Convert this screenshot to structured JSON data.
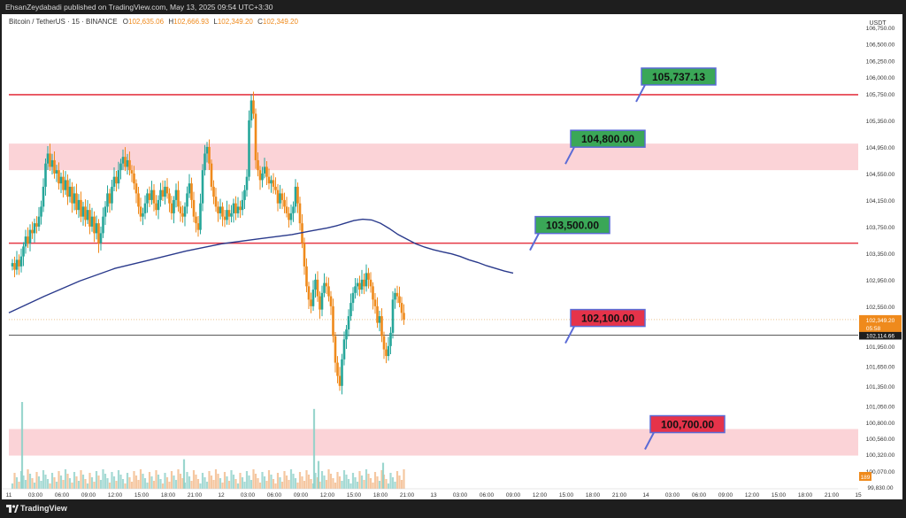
{
  "header": {
    "published_line": "EhsanZeydabadi published on TradingView.com, May 13, 2025 09:54 UTC+3:30"
  },
  "symbol_bar": {
    "title": "Bitcoin / TetherUS · 15 · BINANCE",
    "o_label": "O",
    "o_value": "102,635.06",
    "h_label": "H",
    "h_value": "102,666.93",
    "l_label": "L",
    "l_value": "102,349.20",
    "c_label": "C",
    "c_value": "102,349.20"
  },
  "footer": {
    "brand": "TradingView"
  },
  "colors": {
    "up": "#26a69a",
    "down": "#ef8a1c",
    "ma": "#2a3a8c",
    "resistance_line": "#e53946",
    "zone_fill": "#fbd3d7",
    "green_box": "#3aa757",
    "red_box": "#e5334a",
    "box_border": "#5b6bd6"
  },
  "chart_data": {
    "type": "candlestick",
    "symbol": "Bitcoin / TetherUS",
    "interval": "15",
    "exchange": "BINANCE",
    "y_axis_unit": "USDT",
    "ylim": [
      99800,
      106950
    ],
    "y_ticks": [
      "106,750.00",
      "106,500.00",
      "106,250.00",
      "106,000.00",
      "105,750.00",
      "105,350.00",
      "104,950.00",
      "104,550.00",
      "104,150.00",
      "103,750.00",
      "103,350.00",
      "102,950.00",
      "102,550.00",
      "101,950.00",
      "101,650.00",
      "101,350.00",
      "101,050.00",
      "100,800.00",
      "100,560.00",
      "100,320.00",
      "100,070.00",
      "99,830.00"
    ],
    "x_ticks": [
      "11",
      "03:00",
      "06:00",
      "09:00",
      "12:00",
      "15:00",
      "18:00",
      "21:00",
      "12",
      "03:00",
      "06:00",
      "09:00",
      "12:00",
      "15:00",
      "18:00",
      "21:00",
      "13",
      "03:00",
      "06:00",
      "09:00",
      "12:00",
      "15:00",
      "18:00",
      "21:00",
      "14",
      "03:00",
      "06:00",
      "09:00",
      "12:00",
      "15:00",
      "18:00",
      "21:00",
      "15"
    ],
    "x_range_hours": [
      0,
      96
    ],
    "ohlc_series": {
      "x_start_hours": 0.4,
      "x_step_hours": 0.25,
      "closes": [
        103200,
        103100,
        103250,
        103150,
        103300,
        103450,
        103600,
        103500,
        103700,
        103650,
        103800,
        103750,
        103900,
        104050,
        104350,
        104700,
        104850,
        104650,
        104750,
        104550,
        104600,
        104400,
        104500,
        104300,
        104450,
        104200,
        104350,
        104100,
        104250,
        104000,
        104150,
        103900,
        104050,
        103850,
        104000,
        103750,
        103900,
        103650,
        103800,
        103500,
        103650,
        103900,
        104050,
        104250,
        104100,
        104350,
        104500,
        104400,
        104600,
        104700,
        104800,
        104650,
        104750,
        104600,
        104550,
        104400,
        104250,
        104050,
        103900,
        103950,
        104100,
        104250,
        104150,
        104300,
        104100,
        104000,
        104150,
        104300,
        104200,
        104350,
        104250,
        104100,
        103950,
        104150,
        104300,
        104050,
        103950,
        103900,
        104050,
        104250,
        104400,
        104150,
        103900,
        103800,
        103700,
        104100,
        104600,
        104850,
        104950,
        104700,
        104350,
        104200,
        104050,
        103950,
        104050,
        103900,
        103850,
        104000,
        103900,
        103950,
        104100,
        103950,
        104050,
        104000,
        104150,
        104300,
        104500,
        105350,
        105650,
        105450,
        104750,
        104600,
        104450,
        104550,
        104650,
        104500,
        104400,
        104450,
        104350,
        104300,
        104100,
        104250,
        104150,
        104050,
        103950,
        103850,
        103950,
        104050,
        104350,
        104100,
        103800,
        103500,
        103150,
        102850,
        102650,
        102550,
        102800,
        102950,
        102700,
        102500,
        102750,
        102900,
        102850,
        102700,
        102550,
        102100,
        101700,
        101500,
        101350,
        101750,
        102050,
        102200,
        102400,
        102600,
        102750,
        102850,
        102900,
        102800,
        102950,
        102850,
        103050,
        102950,
        102850,
        102650,
        102550,
        102300,
        102400,
        102100,
        101900,
        101800,
        101950,
        102150,
        102650,
        102750,
        102700,
        102600,
        102450,
        102350
      ]
    },
    "series": [
      {
        "name": "MA",
        "x": [
          0,
          4,
          8,
          12,
          16,
          20,
          24,
          28,
          32,
          34,
          36,
          37,
          38,
          39,
          40,
          41,
          42,
          43,
          44,
          45,
          46,
          47,
          48,
          49,
          50,
          51,
          52,
          53,
          54,
          55,
          56,
          57
        ],
        "values": [
          102450,
          102700,
          102930,
          103120,
          103250,
          103380,
          103490,
          103560,
          103630,
          103680,
          103730,
          103760,
          103800,
          103840,
          103860,
          103850,
          103800,
          103720,
          103630,
          103560,
          103490,
          103440,
          103400,
          103370,
          103340,
          103300,
          103250,
          103210,
          103160,
          103120,
          103080,
          103050
        ]
      }
    ],
    "volume_bars": {
      "max_value": 100,
      "spikes": [
        {
          "x_hours": 1.5,
          "value": 100
        },
        {
          "x_hours": 34.5,
          "value": 92
        },
        {
          "x_hours": 35.0,
          "value": 32
        },
        {
          "x_hours": 19.8,
          "value": 34
        },
        {
          "x_hours": 42.3,
          "value": 30
        }
      ]
    },
    "horizontal_levels": [
      {
        "price": 105737.13,
        "kind": "line",
        "box_label": "105,737.13",
        "box_color": "green",
        "box_x_hours": 71.5
      },
      {
        "price_low": 104600,
        "price_high": 105000,
        "kind": "zone",
        "box_label": "104,800.00",
        "box_color": "green",
        "box_x_hours": 63.5
      },
      {
        "price": 103500,
        "kind": "line",
        "box_label": "103,500.00",
        "box_color": "green",
        "box_x_hours": 59.5
      },
      {
        "price": 102100,
        "kind": "callout",
        "box_label": "102,100.00",
        "box_color": "red",
        "box_x_hours": 63.5
      },
      {
        "price_low": 100300,
        "price_high": 100700,
        "kind": "zone",
        "box_label": "100,700.00",
        "box_color": "red",
        "box_x_hours": 72.5
      }
    ],
    "reference_lines": [
      {
        "price": 102114.66,
        "label": "102,114.66",
        "style": "solid-black"
      },
      {
        "price": 102349.2,
        "label": "102,349.20",
        "sublabel": "05:58",
        "style": "dotted-orange"
      }
    ],
    "volume_axis_label": "189",
    "grid": false,
    "legend": "none"
  }
}
